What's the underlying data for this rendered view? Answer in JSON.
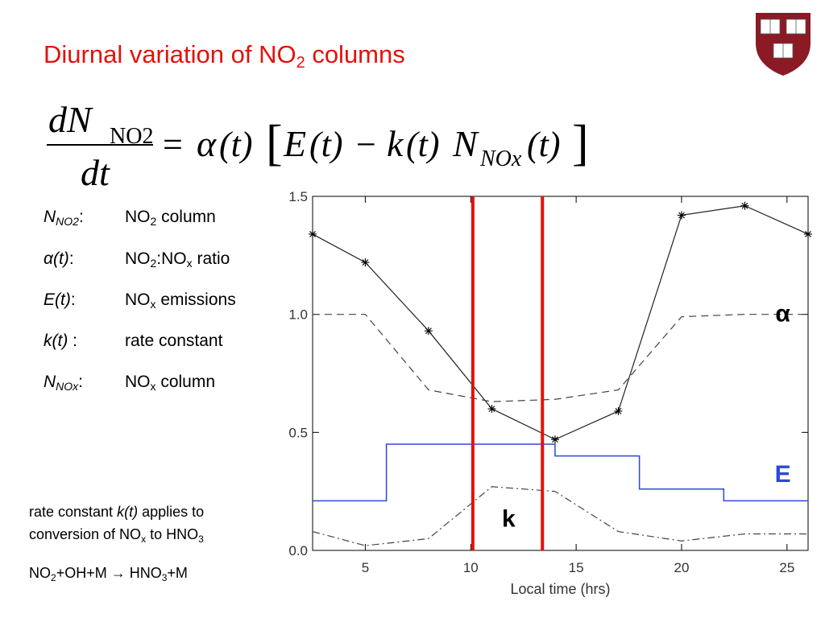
{
  "slide": {
    "title_main": "Diurnal variation of NO",
    "title_sub": "2",
    "title_tail": " columns"
  },
  "equation": {
    "lhs_num": "dN",
    "lhs_num_sub": "NO2",
    "lhs_den": "dt",
    "equals": "=",
    "alpha": "α",
    "t_paren": "(t)",
    "lbracket": "[",
    "E": "E",
    "minus": "−",
    "k": "k",
    "N": "N",
    "n_sub": "NOx",
    "rbracket": "]"
  },
  "definitions": [
    {
      "sym": "N",
      "sym_sub": "NO2",
      "colon": ":",
      "desc": "NO",
      "desc_sub": "2",
      "desc_tail": " column"
    },
    {
      "sym": "α(t)",
      "sym_sub": "",
      "colon": ":",
      "desc": "NO",
      "desc_sub": "2",
      "desc_tail": ":NO",
      "desc_sub2": "x",
      "desc_tail2": " ratio"
    },
    {
      "sym": "E(t)",
      "sym_sub": "",
      "colon": ":",
      "desc": "NO",
      "desc_sub": "x",
      "desc_tail": " emissions"
    },
    {
      "sym": "k(t)",
      "sym_sub": "",
      "colon": " :",
      "desc": "rate constant",
      "desc_sub": "",
      "desc_tail": ""
    },
    {
      "sym": "N",
      "sym_sub": "NOx",
      "colon": ":",
      "desc": "NO",
      "desc_sub": "x",
      "desc_tail": " column"
    }
  ],
  "note": {
    "line1_a": "rate constant ",
    "line1_k": "k(t)",
    "line1_b": " applies to",
    "line2_a": "conversion of NO",
    "line2_sub": "x",
    "line2_b": " to HNO",
    "line2_sub2": "3",
    "reaction_a": "NO",
    "reaction_sub1": "2",
    "reaction_b": "+OH+M ",
    "reaction_arrow": "→",
    "reaction_c": " HNO",
    "reaction_sub2": "3",
    "reaction_d": "+M"
  },
  "colors": {
    "title": "#e3120b",
    "E_line": "#2d48d8",
    "vertical_lines": "#e3120b",
    "crest": "#8b1a24"
  },
  "chart_data": {
    "type": "line",
    "xlabel": "Local time (hrs)",
    "ylabel": "",
    "xlim": [
      2.5,
      26
    ],
    "ylim": [
      0.0,
      1.5
    ],
    "xticks": [
      5,
      10,
      15,
      20,
      25
    ],
    "yticks": [
      0.0,
      0.5,
      1.0,
      1.5
    ],
    "xtick_labels": [
      "5",
      "10",
      "15",
      "20",
      "25"
    ],
    "ytick_labels": [
      "0.0",
      "0.5",
      "1.0",
      "1.5"
    ],
    "grid": false,
    "series": [
      {
        "style": "solid-star",
        "x": [
          2.5,
          5,
          8,
          11,
          14,
          17,
          20,
          23,
          26
        ],
        "y": [
          1.34,
          1.22,
          0.93,
          0.6,
          0.47,
          0.59,
          1.42,
          1.46,
          1.34
        ]
      },
      {
        "style": "dashed",
        "x": [
          2.5,
          5,
          8,
          11,
          14,
          17,
          20,
          23,
          26
        ],
        "y": [
          1.0,
          1.0,
          0.68,
          0.63,
          0.64,
          0.68,
          0.99,
          1.0,
          1.0
        ]
      },
      {
        "style": "step",
        "x": [
          2.5,
          6,
          6,
          14,
          14,
          18,
          18,
          22,
          22,
          26
        ],
        "y": [
          0.21,
          0.21,
          0.45,
          0.45,
          0.4,
          0.4,
          0.26,
          0.26,
          0.21,
          0.21
        ]
      },
      {
        "style": "dashdot",
        "x": [
          2.5,
          5,
          8,
          11,
          14,
          17,
          20,
          23,
          26
        ],
        "y": [
          0.08,
          0.02,
          0.05,
          0.27,
          0.25,
          0.08,
          0.04,
          0.07,
          0.07
        ]
      }
    ],
    "vertical_lines": [
      10.1,
      13.4
    ],
    "labels": [
      {
        "text": "α",
        "x": 24.8,
        "y": 0.97
      },
      {
        "text": "E",
        "x": 24.8,
        "y": 0.29
      },
      {
        "text": "k",
        "x": 11.8,
        "y": 0.1
      }
    ]
  }
}
